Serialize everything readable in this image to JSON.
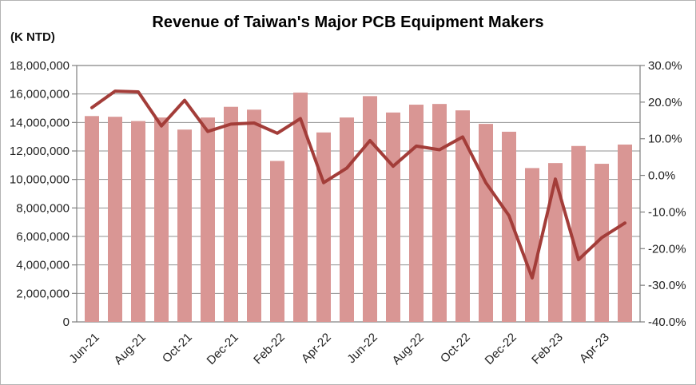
{
  "chart_data": {
    "type": "combo",
    "title": "Revenue of Taiwan's Major PCB Equipment Makers",
    "legend": "none",
    "grid": true,
    "categories": [
      "Jun-21",
      "Jul-21",
      "Aug-21",
      "Sep-21",
      "Oct-21",
      "Nov-21",
      "Dec-21",
      "Jan-22",
      "Feb-22",
      "Mar-22",
      "Apr-22",
      "May-22",
      "Jun-22",
      "Jul-22",
      "Aug-22",
      "Sep-22",
      "Oct-22",
      "Nov-22",
      "Dec-22",
      "Jan-23",
      "Feb-23",
      "Mar-23",
      "Apr-23",
      "May-23"
    ],
    "series": [
      {
        "name": "revenue_k_ntd",
        "type": "bar",
        "axis": "left",
        "color": "#d99694",
        "values": [
          14450000,
          14400000,
          14100000,
          14350000,
          13500000,
          14350000,
          15100000,
          14900000,
          11300000,
          16100000,
          13300000,
          14350000,
          15850000,
          14700000,
          15250000,
          15300000,
          14850000,
          13900000,
          13350000,
          10800000,
          11150000,
          12350000,
          11100000,
          12450000
        ]
      },
      {
        "name": "yoy_growth_pct",
        "type": "line",
        "axis": "right",
        "color": "#a33d39",
        "values": [
          18.5,
          23.0,
          22.8,
          13.5,
          20.5,
          12.0,
          14.0,
          14.3,
          11.5,
          15.5,
          -2.0,
          2.0,
          9.5,
          2.5,
          8.0,
          7.0,
          10.5,
          -2.0,
          -11.0,
          -28.0,
          -1.0,
          -23.0,
          -17.0,
          -13.0
        ]
      }
    ],
    "y_left": {
      "label": "(K NTD)",
      "min": 0,
      "max": 18000000,
      "step": 2000000,
      "tick_labels": [
        "18,000,000",
        "16,000,000",
        "14,000,000",
        "12,000,000",
        "10,000,000",
        "8,000,000",
        "6,000,000",
        "4,000,000",
        "2,000,000",
        "0"
      ]
    },
    "y_right": {
      "min": -40,
      "max": 30,
      "step": 10,
      "tick_labels": [
        "30.0%",
        "20.0%",
        "10.0%",
        "0.0%",
        "-10.0%",
        "-20.0%",
        "-30.0%",
        "-40.0%"
      ]
    },
    "x_axis": {
      "tick_every": 2,
      "tick_labels": [
        "Jun-21",
        "Aug-21",
        "Oct-21",
        "Dec-21",
        "Feb-22",
        "Apr-22",
        "Jun-22",
        "Aug-22",
        "Oct-22",
        "Dec-22",
        "Feb-23",
        "Apr-23"
      ]
    },
    "axis_colors": {
      "gridline": "#8f8f8f",
      "border": "#7f7f7f",
      "text": "#1f1f1f"
    }
  }
}
